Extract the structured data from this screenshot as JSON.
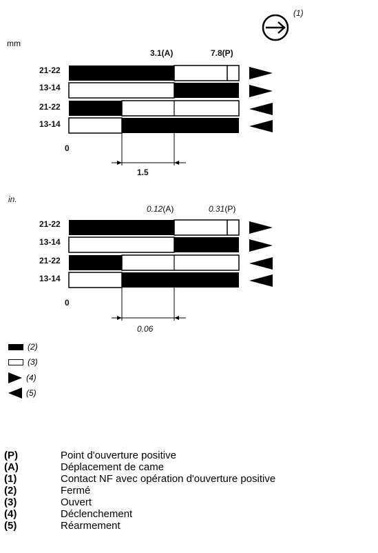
{
  "header": {
    "symbol_note": "(1)",
    "arrow_icon": "circled-right-arrow-icon"
  },
  "diagram_mm": {
    "unit": "mm",
    "marker_A": "3.1(A)",
    "marker_P": "7.8(P)",
    "rows": [
      "21-22",
      "13-14",
      "21-22",
      "13-14"
    ],
    "zero": "0",
    "dimension": "1.5"
  },
  "diagram_in": {
    "unit": "in.",
    "marker_A_value": "0.12",
    "marker_A_suffix": "(A)",
    "marker_P_value": "0.31",
    "marker_P_suffix": "(P)",
    "rows": [
      "21-22",
      "13-14",
      "21-22",
      "13-14"
    ],
    "zero": "0",
    "dimension": "0.06"
  },
  "legend": {
    "closed": "(2)",
    "open": "(3)",
    "trip": "(4)",
    "reset": "(5)"
  },
  "notes": [
    {
      "key": "(P)",
      "text": "Point d'ouverture positive"
    },
    {
      "key": "(A)",
      "text": "Déplacement de came"
    },
    {
      "key": "(1)",
      "text": "Contact NF avec opération d'ouverture positive"
    },
    {
      "key": "(2)",
      "text": "Fermé"
    },
    {
      "key": "(3)",
      "text": "Ouvert"
    },
    {
      "key": "(4)",
      "text": "Déclenchement"
    },
    {
      "key": "(5)",
      "text": "Réarmement"
    }
  ],
  "colors": {
    "fill": "#000000",
    "background": "#ffffff"
  }
}
